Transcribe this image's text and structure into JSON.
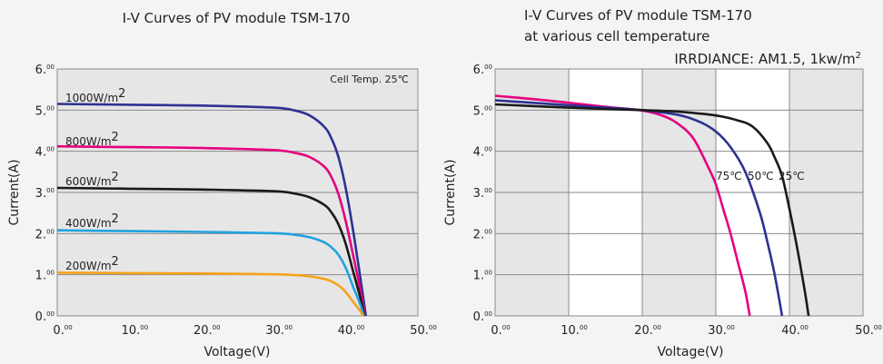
{
  "chart_data": [
    {
      "type": "line",
      "title": "I-V Curves of PV module TSM-170",
      "subtitle": "",
      "xlabel": "Voltage(V)",
      "ylabel": "Current(A)",
      "xlim": [
        0,
        50
      ],
      "ylim": [
        0,
        6
      ],
      "x_ticks": [
        0,
        10,
        20,
        30,
        40,
        50
      ],
      "y_ticks": [
        0,
        1,
        2,
        3,
        4,
        5,
        6
      ],
      "tick_suffix": "00",
      "note": "Cell Temp. 25℃",
      "grid": "horizontal",
      "series": [
        {
          "name": "1000W/m2",
          "label_base": "1000W/m",
          "label_sup": "2",
          "color": "#2e3192",
          "points": [
            [
              0,
              5.15
            ],
            [
              10,
              5.13
            ],
            [
              20,
              5.11
            ],
            [
              30,
              5.06
            ],
            [
              33,
              4.99
            ],
            [
              35,
              4.87
            ],
            [
              37,
              4.6
            ],
            [
              38,
              4.32
            ],
            [
              39,
              3.85
            ],
            [
              40,
              3.1
            ],
            [
              41,
              2.1
            ],
            [
              42,
              0.95
            ],
            [
              42.8,
              0
            ]
          ]
        },
        {
          "name": "800W/m2",
          "label_base": "800W/m",
          "label_sup": "2",
          "color": "#e5007e",
          "points": [
            [
              0,
              4.12
            ],
            [
              10,
              4.1
            ],
            [
              20,
              4.08
            ],
            [
              30,
              4.03
            ],
            [
              33,
              3.96
            ],
            [
              35,
              3.86
            ],
            [
              37,
              3.63
            ],
            [
              38,
              3.38
            ],
            [
              39,
              2.95
            ],
            [
              40,
              2.3
            ],
            [
              41,
              1.5
            ],
            [
              42,
              0.65
            ],
            [
              42.7,
              0
            ]
          ]
        },
        {
          "name": "600W/m2",
          "label_base": "600W/m",
          "label_sup": "2",
          "color": "#1a1a1a",
          "points": [
            [
              0,
              3.11
            ],
            [
              10,
              3.09
            ],
            [
              20,
              3.07
            ],
            [
              30,
              3.03
            ],
            [
              33,
              2.97
            ],
            [
              35,
              2.88
            ],
            [
              37,
              2.7
            ],
            [
              38,
              2.52
            ],
            [
              39,
              2.22
            ],
            [
              40,
              1.75
            ],
            [
              41,
              1.1
            ],
            [
              42,
              0.45
            ],
            [
              42.6,
              0
            ]
          ]
        },
        {
          "name": "400W/m2",
          "label_base": "400W/m",
          "label_sup": "2",
          "color": "#1fa2e0",
          "points": [
            [
              0,
              2.08
            ],
            [
              10,
              2.06
            ],
            [
              20,
              2.04
            ],
            [
              30,
              2.01
            ],
            [
              33,
              1.97
            ],
            [
              35,
              1.91
            ],
            [
              37,
              1.79
            ],
            [
              38,
              1.67
            ],
            [
              39,
              1.48
            ],
            [
              40,
              1.17
            ],
            [
              41,
              0.72
            ],
            [
              42,
              0.28
            ],
            [
              42.5,
              0
            ]
          ]
        },
        {
          "name": "200W/m2",
          "label_base": "200W/m",
          "label_sup": "2",
          "color": "#f7a21b",
          "points": [
            [
              0,
              1.05
            ],
            [
              10,
              1.04
            ],
            [
              20,
              1.03
            ],
            [
              30,
              1.01
            ],
            [
              33,
              0.99
            ],
            [
              35,
              0.96
            ],
            [
              37,
              0.9
            ],
            [
              38,
              0.84
            ],
            [
              39,
              0.74
            ],
            [
              40,
              0.58
            ],
            [
              41,
              0.35
            ],
            [
              42,
              0.12
            ],
            [
              42.4,
              0
            ]
          ]
        }
      ]
    },
    {
      "type": "line",
      "title": "I-V Curves of PV module TSM-170",
      "subtitle": "at various cell temperature",
      "xlabel": "Voltage(V)",
      "ylabel": "Current(A)",
      "xlim": [
        0,
        50
      ],
      "ylim": [
        0,
        6
      ],
      "x_ticks": [
        0,
        10,
        20,
        30,
        40,
        50
      ],
      "y_ticks": [
        0,
        1,
        2,
        3,
        4,
        5,
        6
      ],
      "tick_suffix": "00",
      "note": "IRRDIANCE: AM1.5, 1kw/m",
      "note_sup": "2",
      "grid": "horizontal and vertical",
      "series": [
        {
          "name": "75℃",
          "color": "#e5007e",
          "points": [
            [
              0,
              5.35
            ],
            [
              5,
              5.27
            ],
            [
              10,
              5.18
            ],
            [
              15,
              5.08
            ],
            [
              20,
              4.99
            ],
            [
              23,
              4.85
            ],
            [
              25,
              4.65
            ],
            [
              27,
              4.3
            ],
            [
              29,
              3.6
            ],
            [
              30,
              3.2
            ],
            [
              31,
              2.6
            ],
            [
              32,
              2.0
            ],
            [
              33,
              1.3
            ],
            [
              34,
              0.6
            ],
            [
              34.6,
              0
            ]
          ]
        },
        {
          "name": "50℃",
          "color": "#2e3192",
          "points": [
            [
              0,
              5.24
            ],
            [
              5,
              5.18
            ],
            [
              10,
              5.12
            ],
            [
              15,
              5.06
            ],
            [
              20,
              5.0
            ],
            [
              25,
              4.88
            ],
            [
              28,
              4.7
            ],
            [
              30,
              4.48
            ],
            [
              32,
              4.1
            ],
            [
              34,
              3.5
            ],
            [
              36,
              2.5
            ],
            [
              37,
              1.8
            ],
            [
              38,
              1.0
            ],
            [
              39,
              0
            ]
          ]
        },
        {
          "name": "25℃",
          "color": "#1a1a1a",
          "points": [
            [
              0,
              5.14
            ],
            [
              5,
              5.1
            ],
            [
              10,
              5.06
            ],
            [
              15,
              5.03
            ],
            [
              20,
              5.0
            ],
            [
              25,
              4.96
            ],
            [
              30,
              4.87
            ],
            [
              33,
              4.75
            ],
            [
              35,
              4.6
            ],
            [
              37,
              4.2
            ],
            [
              38,
              3.85
            ],
            [
              39,
              3.4
            ],
            [
              40,
              2.6
            ],
            [
              41,
              1.7
            ],
            [
              42,
              0.7
            ],
            [
              42.6,
              0
            ]
          ]
        }
      ]
    }
  ]
}
